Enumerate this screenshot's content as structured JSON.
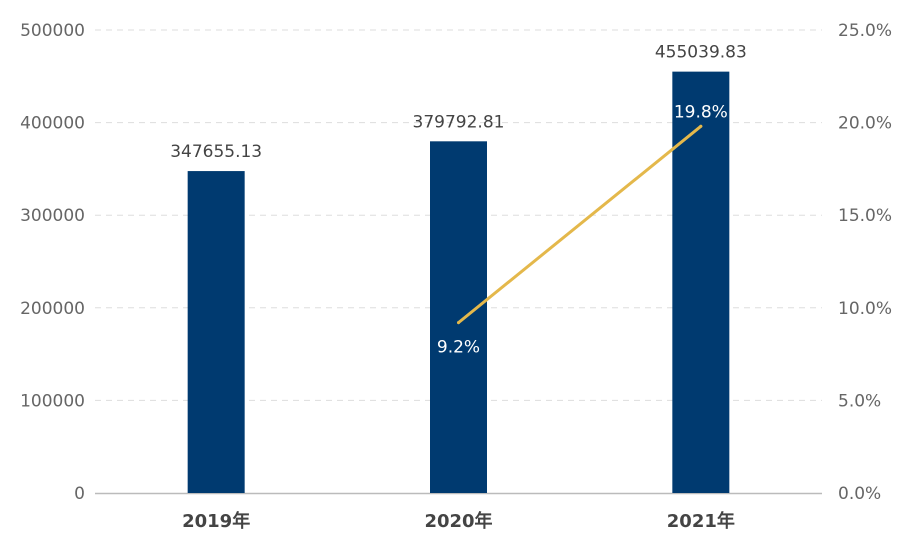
{
  "chart_data": {
    "type": "bar",
    "categories": [
      "2019年",
      "2020年",
      "2021年"
    ],
    "series": [
      {
        "type": "bar",
        "values": [
          347655.13,
          379792.81,
          455039.83
        ],
        "labels": [
          "347655.13",
          "379792.81",
          "455039.83"
        ]
      },
      {
        "type": "line",
        "axis": "right",
        "x": [
          "2020年",
          "2021年"
        ],
        "values": [
          9.2,
          19.8
        ],
        "labels": [
          "9.2%",
          "19.8%"
        ]
      }
    ],
    "left_axis": {
      "ylim": [
        0,
        500000
      ],
      "ticks": [
        "0",
        "100000",
        "200000",
        "300000",
        "400000",
        "500000"
      ]
    },
    "right_axis": {
      "ylim": [
        0,
        25
      ],
      "ticks": [
        "0.0%",
        "5.0%",
        "10.0%",
        "15.0%",
        "20.0%",
        "25.0%"
      ]
    },
    "grid": true,
    "colors": {
      "bar": "#003A70",
      "line": "#E4B84B",
      "grid": "#DDDDDD",
      "axis": "#BBBBBB"
    }
  }
}
